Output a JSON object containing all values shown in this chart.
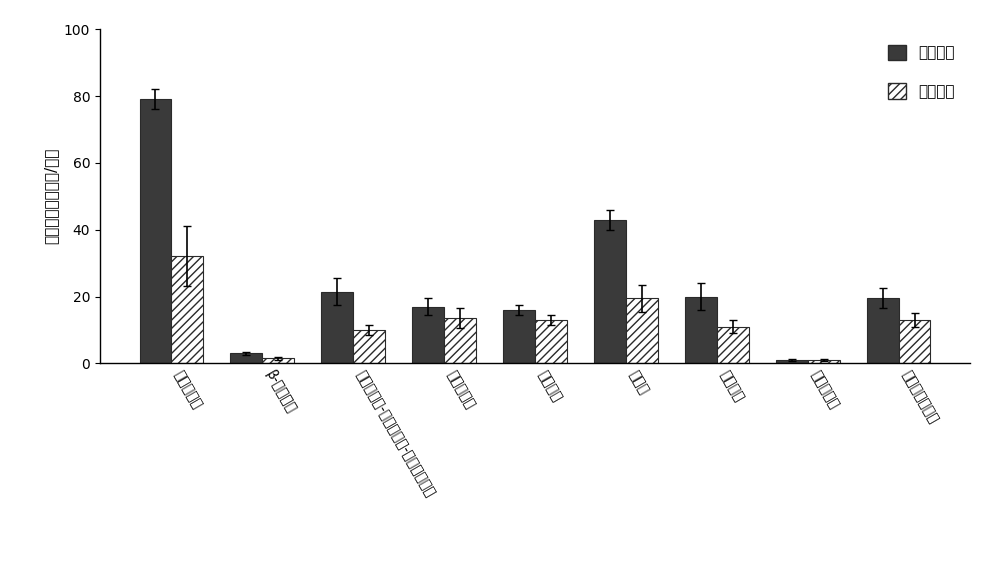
{
  "categories": [
    "氨基糖苷类",
    "β-内酰胺类",
    "大环内酯类-林肯酰胺类-链阳性菌素类",
    "多重抗药类",
    "氯霖素类",
    "磺胺类",
    "四环素类",
    "万古霖素类",
    "可移动遗传元件"
  ],
  "initial_values": [
    79,
    3,
    21.5,
    17,
    16,
    43,
    20,
    1,
    19.5
  ],
  "treated_values": [
    32,
    1.5,
    10,
    13.5,
    13,
    19.5,
    11,
    1,
    13
  ],
  "initial_errors": [
    3,
    0.5,
    4,
    2.5,
    1.5,
    3,
    4,
    0.3,
    3
  ],
  "treated_errors": [
    9,
    0.5,
    1.5,
    3,
    1.5,
    4,
    2,
    0.3,
    2
  ],
  "initial_color": "#3a3a3a",
  "treated_color": "#ffffff",
  "treated_hatch": "////",
  "bar_edge_color": "#2a2a2a",
  "ylim": [
    0,
    100
  ],
  "yticks": [
    0,
    20,
    40,
    60,
    80,
    100
  ],
  "ylabel": "绝对丰度（拷贝数/克）",
  "legend_initial": "初始土壤",
  "legend_treated": "处理土壤",
  "bar_width": 0.35,
  "figsize": [
    10.0,
    5.86
  ],
  "dpi": 100,
  "label_rotation": -60,
  "label_fontsize": 10,
  "legend_fontsize": 11
}
